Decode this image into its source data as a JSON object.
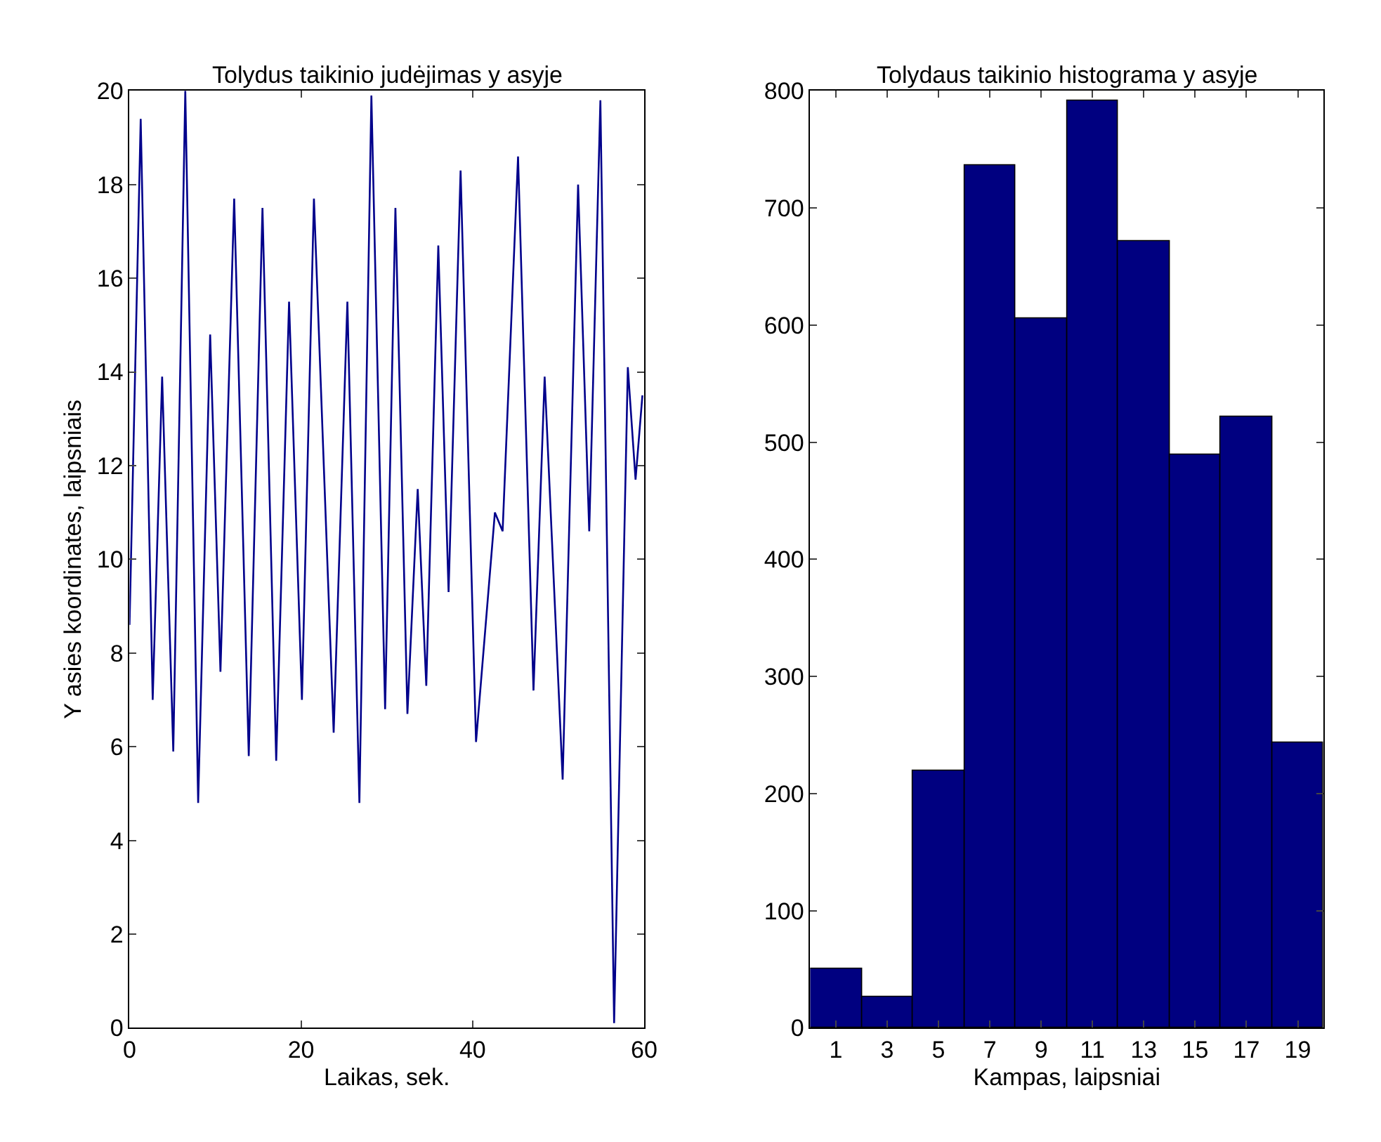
{
  "chart_data": [
    {
      "type": "line",
      "title": "Tolydus taikinio judėjimas y asyje",
      "xlabel": "Laikas, sek.",
      "ylabel": "Y asies koordinates, laipsniais",
      "x": [
        0,
        1.3,
        2.7,
        3.8,
        5.1,
        6.5,
        8.0,
        9.4,
        10.6,
        12.2,
        13.9,
        15.5,
        17.1,
        18.6,
        20.1,
        21.5,
        23.8,
        25.4,
        26.8,
        28.2,
        29.8,
        31.0,
        32.4,
        33.6,
        34.6,
        36.0,
        37.2,
        38.6,
        40.4,
        42.6,
        43.5,
        45.3,
        47.1,
        48.4,
        50.5,
        52.3,
        53.6,
        54.9,
        56.5,
        58.1,
        59.0,
        59.8
      ],
      "series": [
        {
          "color": "#00008b",
          "values": [
            8.6,
            19.4,
            7.0,
            13.9,
            5.9,
            20.0,
            4.8,
            14.8,
            7.6,
            17.7,
            5.8,
            17.5,
            5.7,
            15.5,
            7.0,
            17.7,
            6.3,
            15.5,
            4.8,
            19.9,
            6.8,
            17.5,
            6.7,
            11.5,
            7.3,
            16.7,
            9.3,
            18.3,
            6.1,
            11.0,
            10.6,
            18.6,
            7.2,
            13.9,
            5.3,
            18.0,
            10.6,
            19.8,
            0.1,
            14.1,
            11.7,
            13.5
          ]
        }
      ],
      "xlim": [
        0,
        60
      ],
      "xticks": [
        0,
        20,
        40,
        60
      ],
      "ylim": [
        0,
        20
      ],
      "yticks": [
        0,
        2,
        4,
        6,
        8,
        10,
        12,
        14,
        16,
        18,
        20
      ],
      "grid": false,
      "marker": "none",
      "line_style": "solid"
    },
    {
      "type": "histogram",
      "title": "Tolydaus taikinio histograma y asyje",
      "xlabel": "Kampas, laipsniai",
      "bins": [
        0,
        2,
        4,
        6,
        8,
        10,
        12,
        14,
        16,
        18,
        20
      ],
      "values": [
        50,
        27,
        220,
        736,
        606,
        792,
        672,
        489,
        522,
        243
      ],
      "color": "#000080",
      "xlim": [
        0,
        20
      ],
      "xticks": [
        1,
        3,
        5,
        7,
        9,
        11,
        13,
        15,
        17,
        19
      ],
      "ylim": [
        0,
        800
      ],
      "yticks": [
        0,
        100,
        200,
        300,
        400,
        500,
        600,
        700,
        800
      ],
      "grid": false
    }
  ]
}
